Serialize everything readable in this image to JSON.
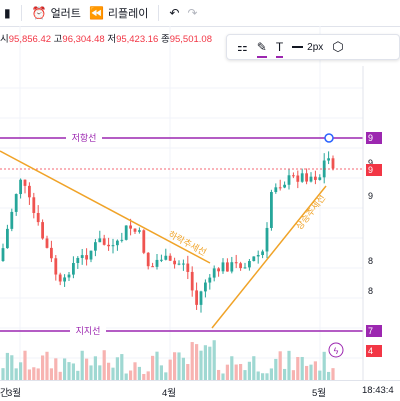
{
  "toolbar": {
    "undo_redo_label": "얼러트",
    "replay_label": "리플레이",
    "undo_icon": "undo-icon",
    "redo_icon": "redo-icon"
  },
  "ohlc": {
    "open_label": "시",
    "open": "95,856.42",
    "high_label": "고",
    "high": "96,304.48",
    "low_label": "저",
    "low": "95,423.16",
    "close_label": "종",
    "close": "95,501.08"
  },
  "drawing_toolbar": {
    "width_label": "2px",
    "accent_color": "#9c27b0"
  },
  "annotations": {
    "resistance": "저항선",
    "support": "지지선",
    "down_trend": "하락추세선",
    "up_trend": "상승추세선"
  },
  "price_axis": {
    "resistance_tag": "9",
    "current_tag": "9",
    "support_tag": "7",
    "bottom_tag": "4",
    "lbl_9a": "9",
    "lbl_9b": "9",
    "lbl_8a": "8",
    "lbl_8b": "8"
  },
  "time_axis": {
    "mar": "3월",
    "apr": "4월",
    "may": "5월",
    "left_edge": "간",
    "time": "18:43:4"
  },
  "colors": {
    "up": "#26a69a",
    "down": "#ef5350",
    "trendline": "#f0a328",
    "horizontal": "#9c27b0",
    "price_red": "#f23645"
  }
}
